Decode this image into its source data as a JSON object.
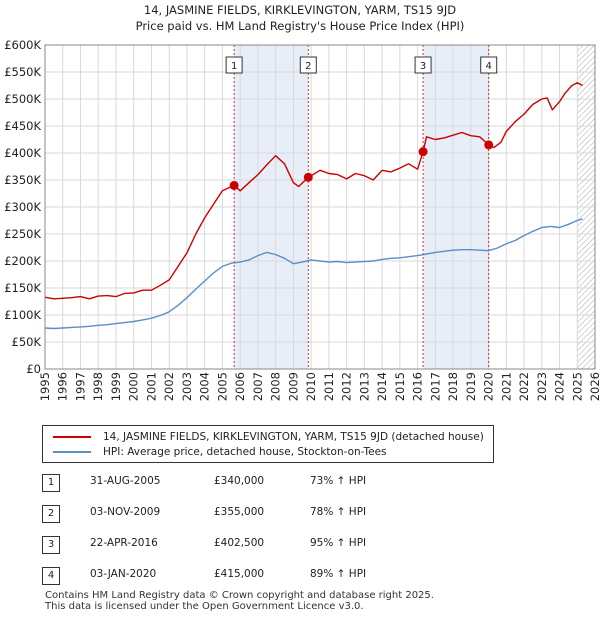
{
  "title_line1": "14, JASMINE FIELDS, KIRKLEVINGTON, YARM, TS15 9JD",
  "title_line2": "Price paid vs. HM Land Registry's House Price Index (HPI)",
  "legend": {
    "property": "14, JASMINE FIELDS, KIRKLEVINGTON, YARM, TS15 9JD (detached house)",
    "hpi": "HPI: Average price, detached house, Stockton-on-Tees"
  },
  "sales": [
    {
      "num": "1",
      "date": "31-AUG-2005",
      "price": "£340,000",
      "hpi": "73% ↑ HPI"
    },
    {
      "num": "2",
      "date": "03-NOV-2009",
      "price": "£355,000",
      "hpi": "78% ↑ HPI"
    },
    {
      "num": "3",
      "date": "22-APR-2016",
      "price": "£402,500",
      "hpi": "95% ↑ HPI"
    },
    {
      "num": "4",
      "date": "03-JAN-2020",
      "price": "£415,000",
      "hpi": "89% ↑ HPI"
    }
  ],
  "footer_line1": "Contains HM Land Registry data © Crown copyright and database right 2025.",
  "footer_line2": "This data is licensed under the Open Government Licence v3.0.",
  "colors": {
    "property": "#cc0000",
    "hpi": "#5b8ec4",
    "shade": "#e8eef8",
    "grid": "#d9d9d9"
  },
  "chart_data": {
    "type": "line",
    "title": "14, JASMINE FIELDS, KIRKLEVINGTON, YARM, TS15 9JD",
    "subtitle": "Price paid vs. HM Land Registry's House Price Index (HPI)",
    "xlim": [
      1995,
      2026
    ],
    "ylim": [
      0,
      600000
    ],
    "yticks": [
      0,
      50000,
      100000,
      150000,
      200000,
      250000,
      300000,
      350000,
      400000,
      450000,
      500000,
      550000,
      600000
    ],
    "ytick_labels": [
      "£0",
      "£50K",
      "£100K",
      "£150K",
      "£200K",
      "£250K",
      "£300K",
      "£350K",
      "£400K",
      "£450K",
      "£500K",
      "£550K",
      "£600K"
    ],
    "xticks": [
      1995,
      1996,
      1997,
      1998,
      1999,
      2000,
      2001,
      2002,
      2003,
      2004,
      2005,
      2006,
      2007,
      2008,
      2009,
      2010,
      2011,
      2012,
      2013,
      2014,
      2015,
      2016,
      2017,
      2018,
      2019,
      2020,
      2021,
      2022,
      2023,
      2024,
      2025,
      2026
    ],
    "shaded_periods": [
      [
        2005.66,
        2009.84
      ],
      [
        2016.31,
        2020.01
      ]
    ],
    "hatched_from": 2025.0,
    "sale_markers": [
      {
        "label": "1",
        "x": 2005.66,
        "y": 340000
      },
      {
        "label": "2",
        "x": 2009.84,
        "y": 355000
      },
      {
        "label": "3",
        "x": 2016.31,
        "y": 402500
      },
      {
        "label": "4",
        "x": 2020.01,
        "y": 415000
      }
    ],
    "series": [
      {
        "name": "14, JASMINE FIELDS, KIRKLEVINGTON, YARM, TS15 9JD (detached house)",
        "x": [
          1995,
          1995.5,
          1996,
          1996.5,
          1997,
          1997.5,
          1998,
          1998.5,
          1999,
          1999.5,
          2000,
          2000.5,
          2001,
          2001.5,
          2002,
          2002.5,
          2003,
          2003.5,
          2004,
          2004.5,
          2005,
          2005.66,
          2006,
          2006.5,
          2007,
          2007.5,
          2008,
          2008.5,
          2009,
          2009.3,
          2009.84,
          2010,
          2010.5,
          2011,
          2011.5,
          2012,
          2012.5,
          2013,
          2013.5,
          2014,
          2014.5,
          2015,
          2015.5,
          2016,
          2016.31,
          2016.5,
          2017,
          2017.5,
          2018,
          2018.5,
          2019,
          2019.5,
          2020.01,
          2020.3,
          2020.7,
          2021,
          2021.5,
          2022,
          2022.5,
          2023,
          2023.3,
          2023.6,
          2024,
          2024.3,
          2024.7,
          2025,
          2025.3
        ],
        "y": [
          133000,
          130000,
          131000,
          132000,
          134000,
          130000,
          135000,
          136000,
          134000,
          140000,
          141000,
          146000,
          146000,
          155000,
          165000,
          190000,
          215000,
          250000,
          280000,
          305000,
          330000,
          340000,
          330000,
          345000,
          360000,
          378000,
          395000,
          380000,
          345000,
          338000,
          355000,
          358000,
          368000,
          362000,
          360000,
          352000,
          362000,
          358000,
          350000,
          368000,
          365000,
          372000,
          380000,
          370000,
          402500,
          430000,
          425000,
          428000,
          433000,
          438000,
          432000,
          430000,
          415000,
          410000,
          420000,
          440000,
          458000,
          472000,
          490000,
          500000,
          502000,
          480000,
          495000,
          510000,
          525000,
          530000,
          525000
        ]
      },
      {
        "name": "HPI: Average price, detached house, Stockton-on-Tees",
        "x": [
          1995,
          1995.5,
          1996,
          1996.5,
          1997,
          1997.5,
          1998,
          1998.5,
          1999,
          1999.5,
          2000,
          2000.5,
          2001,
          2001.5,
          2002,
          2002.5,
          2003,
          2003.5,
          2004,
          2004.5,
          2005,
          2005.5,
          2006,
          2006.5,
          2007,
          2007.5,
          2008,
          2008.5,
          2009,
          2009.5,
          2010,
          2010.5,
          2011,
          2011.5,
          2012,
          2012.5,
          2013,
          2013.5,
          2014,
          2014.5,
          2015,
          2015.5,
          2016,
          2016.5,
          2017,
          2017.5,
          2018,
          2018.5,
          2019,
          2019.5,
          2020,
          2020.5,
          2021,
          2021.5,
          2022,
          2022.5,
          2023,
          2023.5,
          2024,
          2024.5,
          2025,
          2025.3
        ],
        "y": [
          76000,
          75000,
          76000,
          77000,
          78000,
          79000,
          81000,
          82000,
          84000,
          86000,
          88000,
          91000,
          94000,
          99000,
          106000,
          118000,
          132000,
          148000,
          163000,
          178000,
          190000,
          196000,
          198000,
          202000,
          210000,
          216000,
          212000,
          205000,
          195000,
          198000,
          202000,
          200000,
          198000,
          199000,
          197000,
          198000,
          199000,
          200000,
          203000,
          205000,
          206000,
          208000,
          210000,
          213000,
          216000,
          218000,
          220000,
          221000,
          221000,
          220000,
          219000,
          224000,
          232000,
          238000,
          247000,
          255000,
          262000,
          264000,
          262000,
          268000,
          275000,
          278000
        ]
      }
    ]
  }
}
